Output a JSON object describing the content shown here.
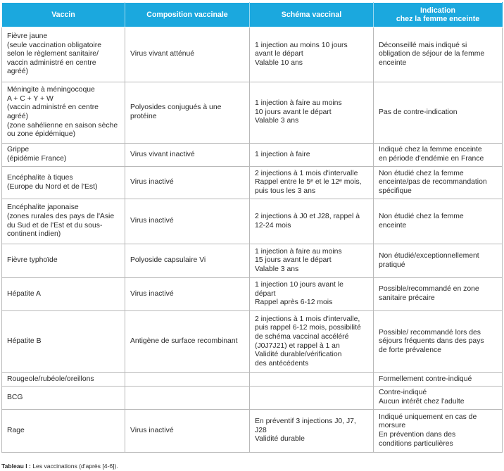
{
  "table": {
    "headers": [
      "Vaccin",
      "Composition vaccinale",
      "Schéma vaccinal",
      "Indication\nchez la femme enceinte"
    ],
    "rows": [
      {
        "vaccin": "Fièvre jaune\n(seule vaccination obligatoire\nselon le règlement sanitaire/\nvaccin administré en centre\nagréé)",
        "composition": "Virus vivant atténué",
        "schema": "1 injection au moins 10 jours\navant le départ\nValable 10 ans",
        "indication": "Déconseillé mais indiqué si\nobligation de séjour de la femme\nenceinte"
      },
      {
        "vaccin": "Méningite à méningocoque\nA + C + Y + W\n(vaccin administré en centre\nagréé)\n(zone sahélienne en saison sèche\nou zone épidémique)",
        "composition": "Polyosides conjugués à une\nprotéine",
        "schema": "1 injection à faire au moins\n10 jours avant le départ\nValable 3 ans",
        "indication": "Pas de contre-indication"
      },
      {
        "vaccin": "Grippe\n(épidémie France)",
        "composition": "Virus vivant inactivé",
        "schema": "1 injection à faire",
        "indication": "Indiqué chez la femme enceinte\nen période d'endémie en France"
      },
      {
        "vaccin": "Encéphalite à tiques\n(Europe du Nord et de l'Est)",
        "composition": "Virus inactivé",
        "schema": "2 injections à 1 mois d'intervalle\nRappel entre le 5ᵉ et le 12ᵉ mois,\npuis tous les 3 ans",
        "indication": "Non étudié chez la femme\nenceinte/pas de recommandation\nspécifique"
      },
      {
        "vaccin": "Encéphalite japonaise\n(zones rurales des pays de l'Asie\ndu Sud et de l'Est et du sous-\ncontinent indien)",
        "composition": "Virus inactivé",
        "schema": "2 injections à J0 et J28, rappel à\n12-24 mois",
        "indication": "Non étudié chez la femme\nenceinte"
      },
      {
        "vaccin": "Fièvre typhoïde",
        "composition": "Polyoside capsulaire Vi",
        "schema": "1 injection à faire au moins\n15 jours avant le départ\nValable 3 ans",
        "indication": "Non étudié/exceptionnellement\npratiqué"
      },
      {
        "vaccin": "Hépatite A",
        "composition": "Virus inactivé",
        "schema": "1 injection 10 jours avant le\ndépart\nRappel après 6-12 mois",
        "indication": "Possible/recommandé en zone\nsanitaire précaire"
      },
      {
        "vaccin": "Hépatite B",
        "composition": "Antigène de surface recombinant",
        "schema": "2 injections à 1 mois d'intervalle,\npuis rappel 6-12 mois, possibilité\nde schéma vaccinal accéléré\n(J0J7J21) et rappel à 1 an\nValidité durable/vérification\ndes antécédents",
        "indication": "Possible/ recommandé lors des\nséjours fréquents dans des pays\nde forte prévalence"
      },
      {
        "vaccin": "Rougeole/rubéole/oreillons",
        "composition": "",
        "schema": "",
        "indication": "Formellement contre-indiqué"
      },
      {
        "vaccin": "BCG",
        "composition": "",
        "schema": "",
        "indication": "Contre-indiqué\nAucun intérêt chez l'adulte"
      },
      {
        "vaccin": "Rage",
        "composition": "Virus inactivé",
        "schema": "En préventif 3 injections J0, J7, J28\nValidité durable",
        "indication": "Indiqué uniquement en cas de\nmorsure\nEn prévention dans des\nconditions particulières"
      }
    ]
  },
  "caption": {
    "label": "Tableau I :",
    "text": " Les vaccinations (d'après [4-6])."
  },
  "colors": {
    "header_bg": "#1ba8de",
    "header_text": "#ffffff",
    "grid": "#b9b9b9"
  }
}
